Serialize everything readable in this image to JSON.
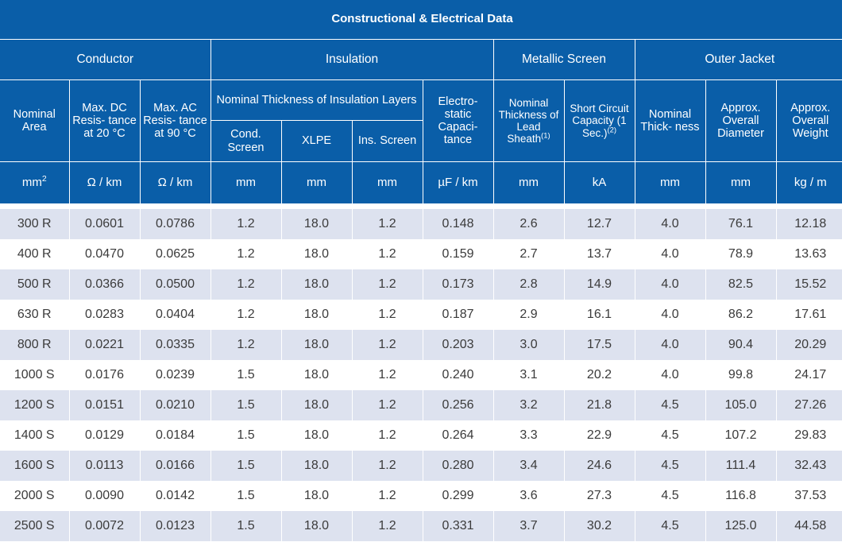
{
  "title": "Constructional & Electrical Data",
  "groups": {
    "conductor": "Conductor",
    "insulation": "Insulation",
    "metallic_screen": "Metallic Screen",
    "outer_jacket": "Outer Jacket"
  },
  "headers": {
    "nominal_area": "Nominal Area",
    "max_dc": "Max. DC Resis- tance at 20 °C",
    "max_ac": "Max. AC Resis- tance at 90 °C",
    "nominal_thickness_insulation": "Nominal Thickness of Insulation Layers",
    "electrostatic": "Electro- static Capaci- tance",
    "lead_sheath": "Nominal Thickness of Lead Sheath",
    "lead_sheath_note": "(1)",
    "short_circuit": "Short Circuit Capacity (1 Sec.)",
    "short_circuit_note": "(2)",
    "jacket_thickness": "Nominal Thick- ness",
    "overall_diameter": "Approx. Overall Diameter",
    "overall_weight": "Approx. Overall Weight",
    "cond_screen": "Cond. Screen",
    "xlpe": "XLPE",
    "ins_screen": "Ins. Screen"
  },
  "units": {
    "area_base": "mm",
    "area_exp": "2",
    "dc": "Ω / km",
    "ac": "Ω / km",
    "cond_screen": "mm",
    "xlpe": "mm",
    "ins_screen": "mm",
    "capacitance": "µF / km",
    "lead": "mm",
    "short_circuit": "kA",
    "jacket": "mm",
    "diameter": "mm",
    "weight": "kg / m"
  },
  "rows": [
    [
      "300 R",
      "0.0601",
      "0.0786",
      "1.2",
      "18.0",
      "1.2",
      "0.148",
      "2.6",
      "12.7",
      "4.0",
      "76.1",
      "12.18"
    ],
    [
      "400 R",
      "0.0470",
      "0.0625",
      "1.2",
      "18.0",
      "1.2",
      "0.159",
      "2.7",
      "13.7",
      "4.0",
      "78.9",
      "13.63"
    ],
    [
      "500 R",
      "0.0366",
      "0.0500",
      "1.2",
      "18.0",
      "1.2",
      "0.173",
      "2.8",
      "14.9",
      "4.0",
      "82.5",
      "15.52"
    ],
    [
      "630 R",
      "0.0283",
      "0.0404",
      "1.2",
      "18.0",
      "1.2",
      "0.187",
      "2.9",
      "16.1",
      "4.0",
      "86.2",
      "17.61"
    ],
    [
      "800 R",
      "0.0221",
      "0.0335",
      "1.2",
      "18.0",
      "1.2",
      "0.203",
      "3.0",
      "17.5",
      "4.0",
      "90.4",
      "20.29"
    ],
    [
      "1000 S",
      "0.0176",
      "0.0239",
      "1.5",
      "18.0",
      "1.2",
      "0.240",
      "3.1",
      "20.2",
      "4.0",
      "99.8",
      "24.17"
    ],
    [
      "1200 S",
      "0.0151",
      "0.0210",
      "1.5",
      "18.0",
      "1.2",
      "0.256",
      "3.2",
      "21.8",
      "4.5",
      "105.0",
      "27.26"
    ],
    [
      "1400 S",
      "0.0129",
      "0.0184",
      "1.5",
      "18.0",
      "1.2",
      "0.264",
      "3.3",
      "22.9",
      "4.5",
      "107.2",
      "29.83"
    ],
    [
      "1600 S",
      "0.0113",
      "0.0166",
      "1.5",
      "18.0",
      "1.2",
      "0.280",
      "3.4",
      "24.6",
      "4.5",
      "111.4",
      "32.43"
    ],
    [
      "2000 S",
      "0.0090",
      "0.0142",
      "1.5",
      "18.0",
      "1.2",
      "0.299",
      "3.6",
      "27.3",
      "4.5",
      "116.8",
      "37.53"
    ],
    [
      "2500 S",
      "0.0072",
      "0.0123",
      "1.5",
      "18.0",
      "1.2",
      "0.331",
      "3.7",
      "30.2",
      "4.5",
      "125.0",
      "44.58"
    ]
  ],
  "colors": {
    "header_bg": "#0a5ea8",
    "header_text": "#ffffff",
    "band_row": "#dde2ef",
    "body_text": "#3b3b3b"
  }
}
